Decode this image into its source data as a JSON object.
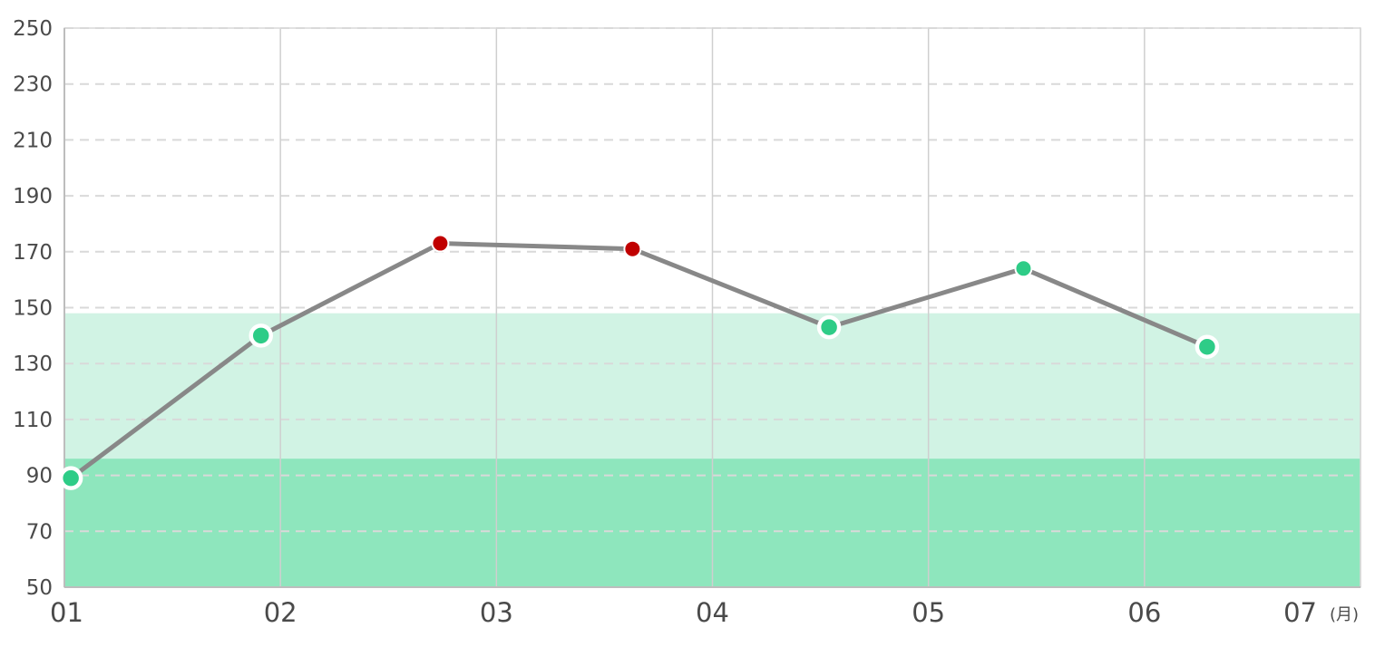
{
  "chart_data": {
    "type": "line",
    "x_tick_labels": [
      "01",
      "02",
      "03",
      "04",
      "05",
      "06",
      "07"
    ],
    "x_unit": "(月)",
    "x_range": [
      1,
      7
    ],
    "y_range": [
      50,
      250
    ],
    "y_ticks": [
      50,
      70,
      90,
      110,
      130,
      150,
      170,
      190,
      210,
      230,
      250
    ],
    "grid": {
      "horizontal": "dashed",
      "vertical": "solid"
    },
    "bands": [
      {
        "from": 50,
        "to": 96,
        "color": "#8ee6bd"
      },
      {
        "from": 96,
        "to": 148,
        "color": "#d1f3e4"
      }
    ],
    "series": [
      {
        "line_color": "#888888",
        "points": [
          {
            "x": 1.03,
            "y": 89,
            "status": "normal",
            "ring": true
          },
          {
            "x": 1.91,
            "y": 140,
            "status": "normal",
            "ring": true
          },
          {
            "x": 2.74,
            "y": 173,
            "status": "high",
            "ring": false
          },
          {
            "x": 3.63,
            "y": 171,
            "status": "high",
            "ring": false
          },
          {
            "x": 4.54,
            "y": 143,
            "status": "normal",
            "ring": true
          },
          {
            "x": 5.44,
            "y": 164,
            "status": "normal",
            "ring": false
          },
          {
            "x": 6.29,
            "y": 136,
            "status": "normal",
            "ring": true
          }
        ]
      }
    ],
    "status_colors": {
      "normal": "#2ecc87",
      "high": "#c00000"
    }
  }
}
